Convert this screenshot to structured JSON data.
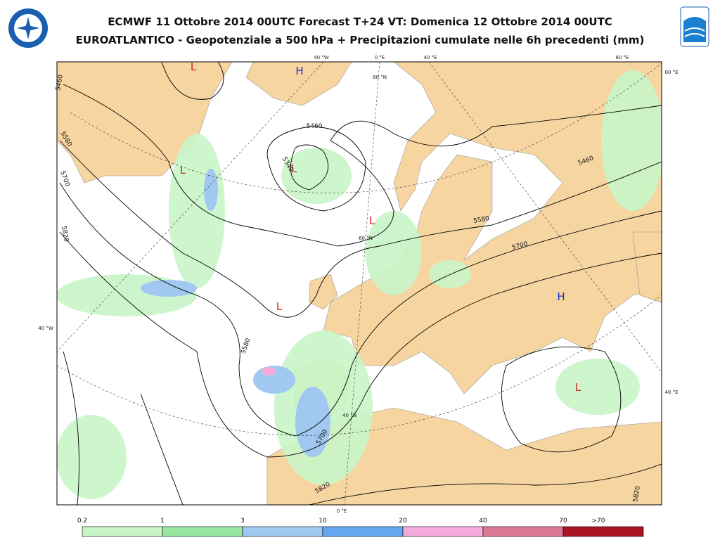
{
  "header": {
    "title": "ECMWF 11 Ottobre 2014 00UTC Forecast T+24 VT: Domenica 12 Ottobre 2014 00UTC",
    "subtitle": "EUROATLANTICO - Geopotenziale a 500 hPa + Precipitazioni cumulate nelle 6h precedenti (mm)"
  },
  "map": {
    "pressure_centers": [
      "H",
      "L",
      "L",
      "L",
      "L",
      "L",
      "H",
      "L"
    ],
    "contour_labels": [
      "5340",
      "5460",
      "5460",
      "5580",
      "5700",
      "5580",
      "5700",
      "5820",
      "5820",
      "5700",
      "5820",
      "5580",
      "5460"
    ],
    "coordinate_labels": [
      "40 °W",
      "0 °E",
      "40 °E",
      "80 °E",
      "80 °E",
      "40 °W",
      "40 °E",
      "0 °E",
      "60 °N",
      "40 °N",
      "80 °N"
    ]
  },
  "legend": {
    "labels": [
      "0.2",
      "1",
      "3",
      "10",
      "20",
      "40",
      "70",
      ">70"
    ],
    "colors": [
      "#c8f5c8",
      "#96e6a0",
      "#a0c8f0",
      "#64a8f0",
      "#f5aadc",
      "#dc7896",
      "#aa1423"
    ]
  }
}
